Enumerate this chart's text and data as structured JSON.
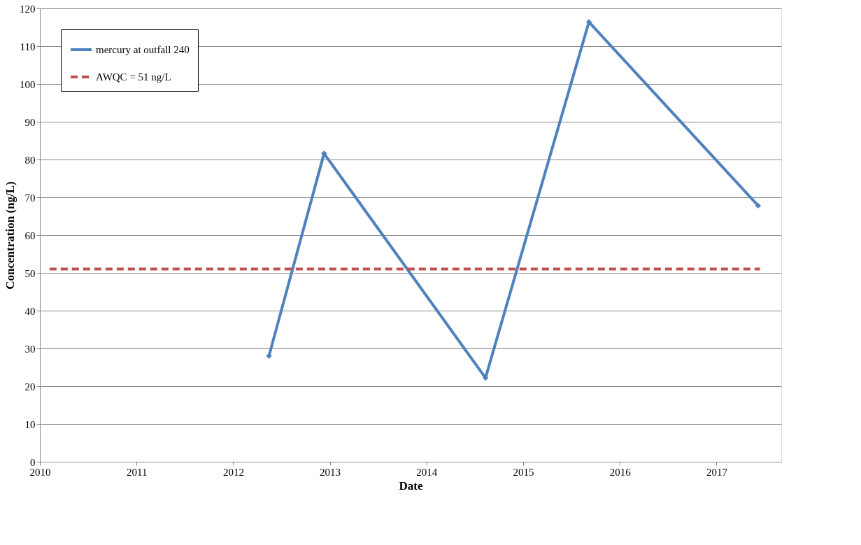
{
  "chart_data": {
    "type": "line",
    "xlabel": "Date",
    "ylabel": "Concentration   (ng/L)",
    "xlim": [
      2010,
      2017.67
    ],
    "xticks": [
      2010,
      2011,
      2012,
      2013,
      2014,
      2015,
      2016,
      2017
    ],
    "ylim": [
      0,
      120
    ],
    "yticks": [
      0,
      10,
      20,
      30,
      40,
      50,
      60,
      70,
      80,
      90,
      100,
      110,
      120
    ],
    "grid": "y",
    "legend": "top left",
    "series": [
      {
        "name": "mercury at outfall 240",
        "color": "#4f81bd",
        "marker": "diamond",
        "line_style": "solid",
        "x": [
          2012.37,
          2012.94,
          2014.61,
          2015.68,
          2017.43
        ],
        "values": [
          28,
          81.6,
          22.2,
          116.4,
          67.8
        ]
      },
      {
        "name": "AWQC = 51 ng/L",
        "color": "#c0504d",
        "marker": "none",
        "line_style": "dashed",
        "x": [
          2010.1,
          2017.45
        ],
        "values": [
          51,
          51
        ]
      }
    ]
  }
}
